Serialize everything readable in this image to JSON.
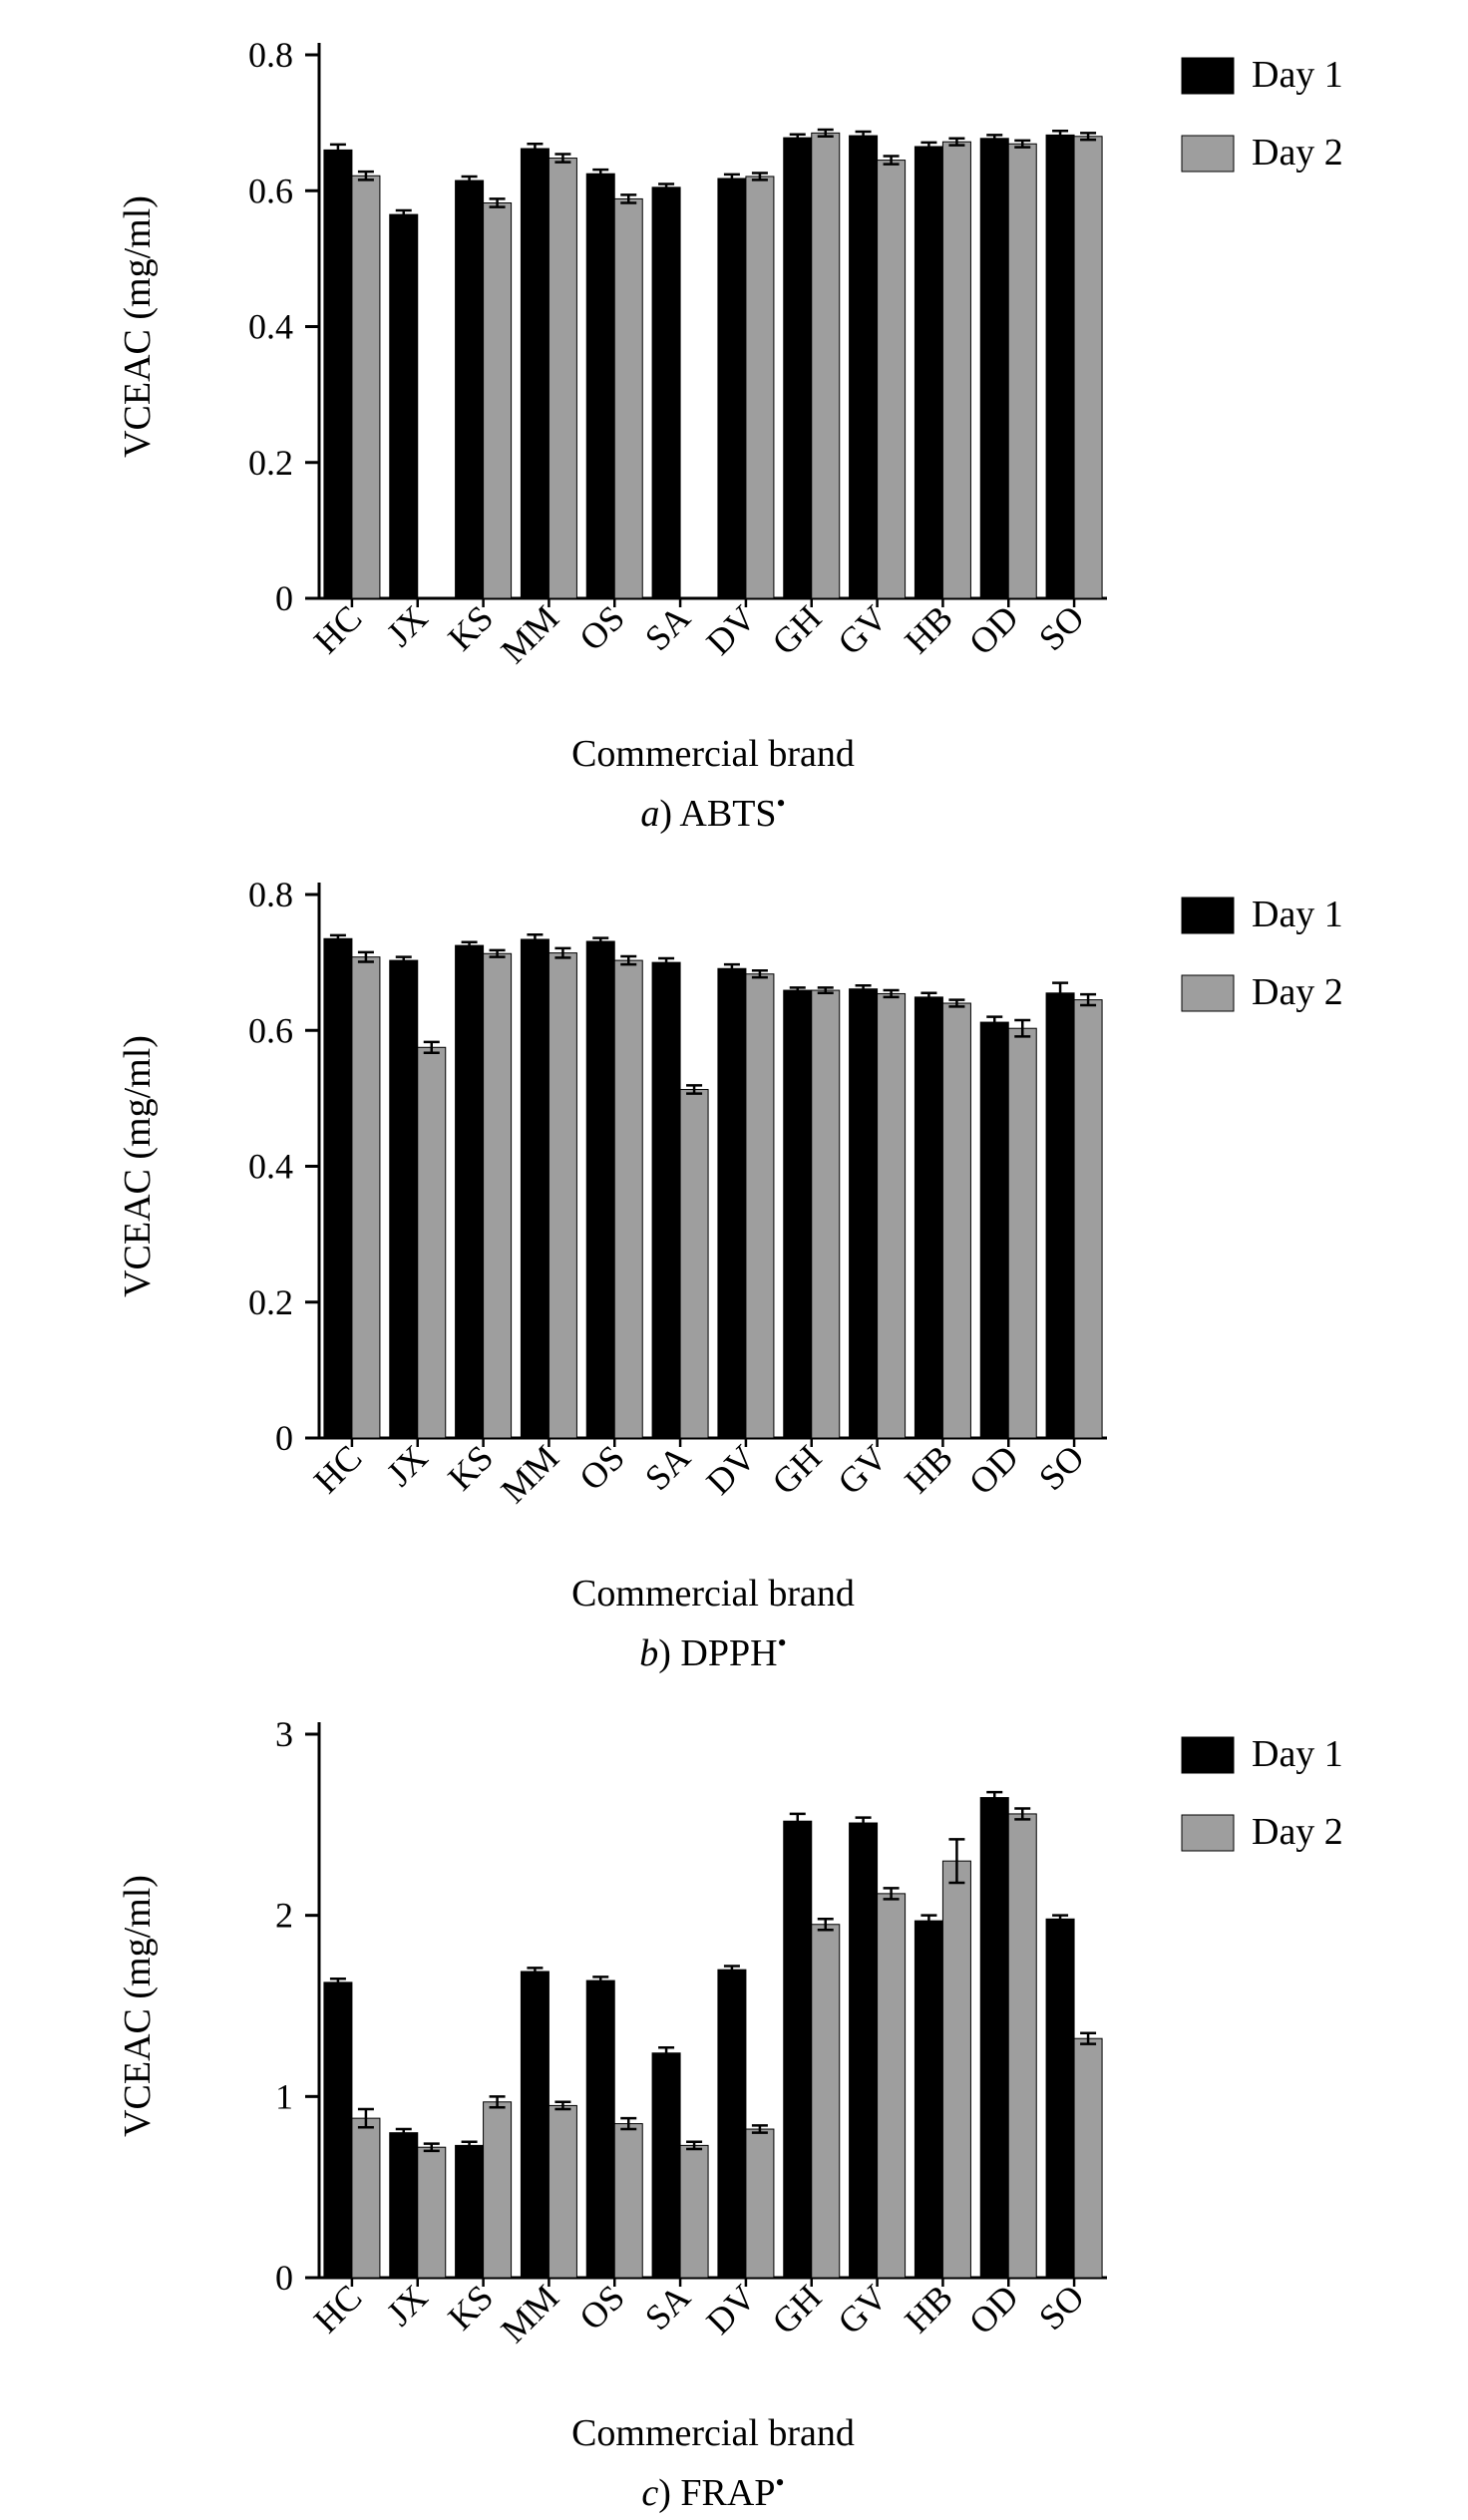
{
  "page": {
    "background": "#ffffff"
  },
  "colors": {
    "day1": "#000000",
    "day2": "#9e9e9e"
  },
  "chart_data": [
    {
      "type": "bar",
      "id": "abts",
      "caption": {
        "prefix": "a",
        "label": ") ABTS",
        "radical": "•"
      },
      "xlabel": "Commercial brand",
      "ylabel": "VCEAC (mg/ml)",
      "ylim": [
        0,
        0.8
      ],
      "yticks": [
        0,
        0.2,
        0.4,
        0.6,
        0.8
      ],
      "ytick_labels": [
        "0",
        "0.2",
        "0.4",
        "0.6",
        "0.8"
      ],
      "grid": false,
      "legend_position": "top-right",
      "categories": [
        "HC",
        "JX",
        "KS",
        "MM",
        "OS",
        "SA",
        "DV",
        "GH",
        "GV",
        "HB",
        "OD",
        "SO"
      ],
      "series": [
        {
          "name": "Day 1",
          "color_key": "day1",
          "values": [
            0.66,
            0.565,
            0.615,
            0.662,
            0.625,
            0.605,
            0.618,
            0.678,
            0.681,
            0.665,
            0.677,
            0.682
          ],
          "errors": [
            0.008,
            0.006,
            0.006,
            0.007,
            0.006,
            0.005,
            0.006,
            0.005,
            0.006,
            0.006,
            0.005,
            0.006
          ]
        },
        {
          "name": "Day 2",
          "color_key": "day2",
          "values": [
            0.622,
            0,
            0.582,
            0.648,
            0.588,
            0,
            0.621,
            0.685,
            0.645,
            0.672,
            0.669,
            0.68
          ],
          "errors": [
            0.006,
            0,
            0.006,
            0.006,
            0.006,
            0,
            0.005,
            0.005,
            0.006,
            0.005,
            0.005,
            0.005
          ]
        }
      ]
    },
    {
      "type": "bar",
      "id": "dpph",
      "caption": {
        "prefix": "b",
        "label": ") DPPH",
        "radical": "•"
      },
      "xlabel": "Commercial brand",
      "ylabel": "VCEAC (mg/ml)",
      "ylim": [
        0,
        0.8
      ],
      "yticks": [
        0,
        0.2,
        0.4,
        0.6,
        0.8
      ],
      "ytick_labels": [
        "0",
        "0.2",
        "0.4",
        "0.6",
        "0.8"
      ],
      "grid": false,
      "legend_position": "top-right",
      "categories": [
        "HC",
        "JX",
        "KS",
        "MM",
        "OS",
        "SA",
        "DV",
        "GH",
        "GV",
        "HB",
        "OD",
        "SO"
      ],
      "series": [
        {
          "name": "Day 1",
          "color_key": "day1",
          "values": [
            0.735,
            0.703,
            0.725,
            0.734,
            0.731,
            0.7,
            0.691,
            0.659,
            0.661,
            0.649,
            0.612,
            0.655
          ],
          "errors": [
            0.005,
            0.005,
            0.005,
            0.007,
            0.005,
            0.006,
            0.006,
            0.004,
            0.005,
            0.006,
            0.008,
            0.015
          ]
        },
        {
          "name": "Day 2",
          "color_key": "day2",
          "values": [
            0.708,
            0.575,
            0.713,
            0.714,
            0.703,
            0.513,
            0.683,
            0.659,
            0.654,
            0.64,
            0.603,
            0.645
          ],
          "errors": [
            0.007,
            0.008,
            0.005,
            0.007,
            0.006,
            0.006,
            0.005,
            0.004,
            0.005,
            0.005,
            0.012,
            0.008
          ]
        }
      ]
    },
    {
      "type": "bar",
      "id": "frap",
      "caption": {
        "prefix": "c",
        "label": ") FRAP",
        "radical": "•"
      },
      "xlabel": "Commercial brand",
      "ylabel": "VCEAC (mg/ml)",
      "ylim": [
        0,
        3
      ],
      "yticks": [
        0,
        1,
        2,
        3
      ],
      "ytick_labels": [
        "0",
        "1",
        "2",
        "3"
      ],
      "grid": false,
      "legend_position": "top-right",
      "categories": [
        "HC",
        "JX",
        "KS",
        "MM",
        "OS",
        "SA",
        "DV",
        "GH",
        "GV",
        "HB",
        "OD",
        "SO"
      ],
      "series": [
        {
          "name": "Day 1",
          "color_key": "day1",
          "values": [
            1.63,
            0.8,
            0.73,
            1.69,
            1.64,
            1.24,
            1.7,
            2.52,
            2.51,
            1.97,
            2.65,
            1.98
          ],
          "errors": [
            0.02,
            0.02,
            0.02,
            0.02,
            0.02,
            0.03,
            0.02,
            0.04,
            0.03,
            0.03,
            0.03,
            0.02
          ]
        },
        {
          "name": "Day 2",
          "color_key": "day2",
          "values": [
            0.88,
            0.72,
            0.97,
            0.95,
            0.85,
            0.73,
            0.82,
            1.95,
            2.12,
            2.3,
            2.56,
            1.32
          ],
          "errors": [
            0.05,
            0.02,
            0.03,
            0.02,
            0.03,
            0.02,
            0.02,
            0.03,
            0.03,
            0.12,
            0.03,
            0.03
          ]
        }
      ]
    }
  ]
}
